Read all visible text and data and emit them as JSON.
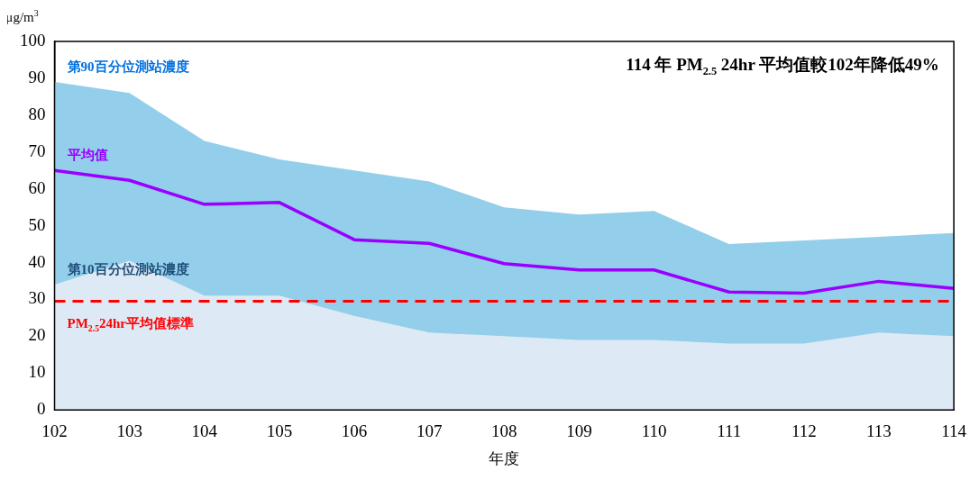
{
  "chart_data": {
    "type": "area",
    "title": "114 年 PM$_{2.5}$ 24hr 平均值較102年降低49%",
    "ylabel": "μg/m$^{3}$",
    "xlabel": "年度",
    "categories": [
      "102",
      "103",
      "104",
      "105",
      "106",
      "107",
      "108",
      "109",
      "110",
      "111",
      "112",
      "113",
      "114"
    ],
    "series": [
      {
        "name": "第90百分位測站濃度",
        "color": "#93cfea",
        "values": [
          89,
          86,
          73,
          68,
          65,
          62,
          55,
          53,
          54,
          45,
          46,
          47,
          48
        ]
      },
      {
        "name": "第10百分位測站濃度",
        "color": "#dde9f5",
        "values": [
          34,
          40.5,
          31,
          31,
          25.5,
          21,
          20,
          19,
          19,
          18,
          18,
          21,
          20
        ]
      },
      {
        "name": "平均值",
        "type": "line",
        "color": "#9900ff",
        "values": [
          65,
          62.3,
          55.8,
          56.3,
          46.2,
          45.2,
          39.7,
          38,
          38,
          32,
          31.7,
          34.9,
          33
        ]
      }
    ],
    "ref_lines": [
      {
        "axis": "y",
        "value": 29.5,
        "label": "PM$_{2.5}$24hr平均值標準",
        "color": "#ff0000",
        "line_style": "dashed"
      }
    ],
    "ylim": [
      0,
      100
    ],
    "yticks": [
      0,
      10,
      20,
      30,
      40,
      50,
      60,
      70,
      80,
      90,
      100
    ],
    "grid": false,
    "legend": false,
    "marker": "none",
    "line_style": "solid"
  }
}
